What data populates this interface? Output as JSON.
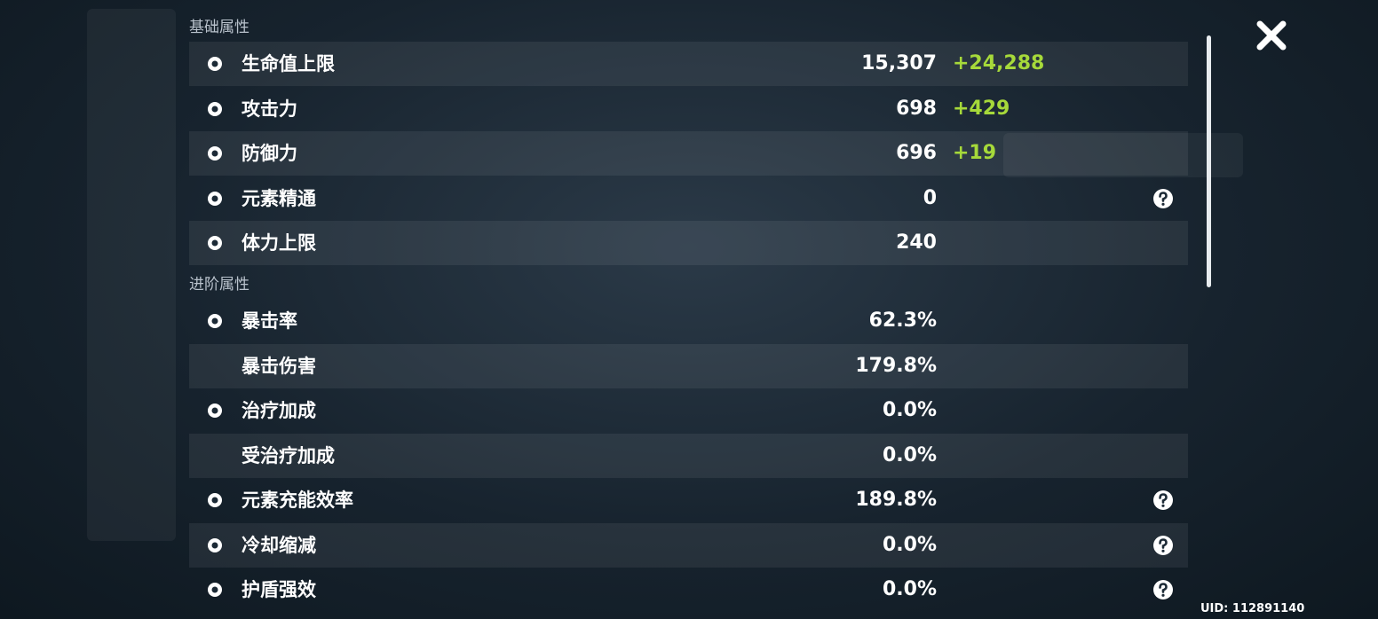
{
  "sections": [
    {
      "title": "基础属性",
      "rows": [
        {
          "name": "生命值上限",
          "value": "15,307",
          "bonus": "+24,288",
          "icon": true,
          "help": false
        },
        {
          "name": "攻击力",
          "value": "698",
          "bonus": "+429",
          "icon": true,
          "help": false
        },
        {
          "name": "防御力",
          "value": "696",
          "bonus": "+19",
          "icon": true,
          "help": false
        },
        {
          "name": "元素精通",
          "value": "0",
          "icon": true,
          "help": true
        },
        {
          "name": "体力上限",
          "value": "240",
          "icon": true,
          "help": false
        }
      ]
    },
    {
      "title": "进阶属性",
      "rows": [
        {
          "name": "暴击率",
          "value": "62.3%",
          "icon": true,
          "help": false
        },
        {
          "name": "暴击伤害",
          "value": "179.8%",
          "icon": false,
          "help": false
        },
        {
          "name": "治疗加成",
          "value": "0.0%",
          "icon": true,
          "help": false
        },
        {
          "name": "受治疗加成",
          "value": "0.0%",
          "icon": false,
          "help": false
        },
        {
          "name": "元素充能效率",
          "value": "189.8%",
          "icon": true,
          "help": true
        },
        {
          "name": "冷却缩减",
          "value": "0.0%",
          "icon": true,
          "help": true
        },
        {
          "name": "护盾强效",
          "value": "0.0%",
          "icon": true,
          "help": true
        }
      ]
    }
  ],
  "uid": "UID: 112891140"
}
